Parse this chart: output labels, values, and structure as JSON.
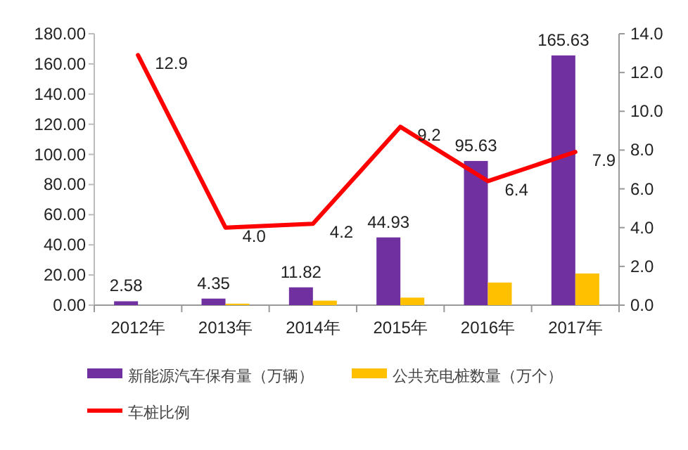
{
  "chart_data": {
    "type": "bar",
    "categories": [
      "2012年",
      "2013年",
      "2014年",
      "2015年",
      "2016年",
      "2017年"
    ],
    "series": [
      {
        "name": "新能源汽车保有量（万辆）",
        "color": "#7030a0",
        "values": [
          2.58,
          4.35,
          11.82,
          44.93,
          95.63,
          165.63
        ],
        "value_labels": [
          "2.58",
          "4.35",
          "11.82",
          "44.93",
          "95.63",
          "165.63"
        ]
      },
      {
        "name": "公共充电桩数量（万个）",
        "color": "#ffc000",
        "values": [
          0,
          1,
          3,
          5,
          15,
          21
        ]
      },
      {
        "name": "车桩比例",
        "type": "line",
        "axis": "y2",
        "color": "#ff0000",
        "marker": "none",
        "values": [
          12.9,
          4.0,
          4.2,
          9.2,
          6.4,
          7.9
        ],
        "value_labels": [
          "12.9",
          "4.0",
          "4.2",
          "9.2",
          "6.4",
          "7.9"
        ]
      }
    ],
    "ylim": [
      0,
      180
    ],
    "yticks": [
      {
        "value": 0,
        "label": "0.00"
      },
      {
        "value": 20,
        "label": "20.00"
      },
      {
        "value": 40,
        "label": "40.00"
      },
      {
        "value": 60,
        "label": "60.00"
      },
      {
        "value": 80,
        "label": "80.00"
      },
      {
        "value": 100,
        "label": "100.00"
      },
      {
        "value": 120,
        "label": "120.00"
      },
      {
        "value": 140,
        "label": "140.00"
      },
      {
        "value": 160,
        "label": "160.00"
      },
      {
        "value": 180,
        "label": "180.00"
      }
    ],
    "y2lim": [
      0,
      14
    ],
    "y2ticks": [
      {
        "value": 0,
        "label": "0.0"
      },
      {
        "value": 2,
        "label": "2.0"
      },
      {
        "value": 4,
        "label": "4.0"
      },
      {
        "value": 6,
        "label": "6.0"
      },
      {
        "value": 8,
        "label": "8.0"
      },
      {
        "value": 10,
        "label": "10.0"
      },
      {
        "value": 12,
        "label": "12.0"
      },
      {
        "value": 14,
        "label": "14.0"
      }
    ],
    "grid": false,
    "legend": "bottom"
  }
}
